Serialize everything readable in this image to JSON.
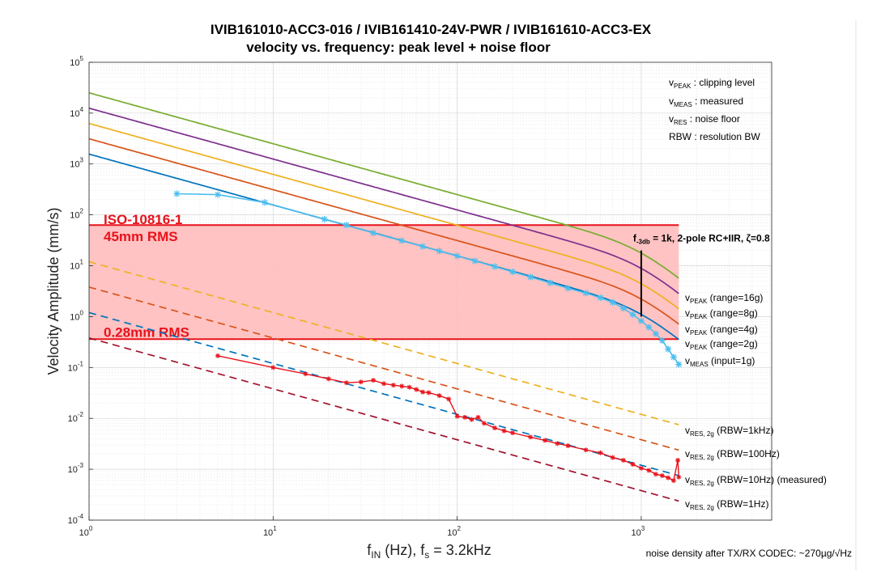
{
  "chart_data": {
    "type": "line",
    "title": "IVIB161010-ACC3-016 / IVIB161410-24V-PWR / IVIB161610-ACC3-EX",
    "subtitle": "velocity vs. frequency: peak level + noise floor",
    "xlabel": {
      "main": "f",
      "sub": "IN",
      "rest": " (Hz), f",
      "sub2": "s",
      "rest2": " = 3.2kHz"
    },
    "ylabel": "Velocity Amplitude (mm/s)",
    "x_scale": "log",
    "y_scale": "log",
    "xlim": [
      1,
      4000
    ],
    "ylim": [
      0.0001,
      100000
    ],
    "x_ticks": [
      {
        "value": 1,
        "base": "10",
        "exp": "0"
      },
      {
        "value": 10,
        "base": "10",
        "exp": "1"
      },
      {
        "value": 100,
        "base": "10",
        "exp": "2"
      },
      {
        "value": 1000,
        "base": "10",
        "exp": "3"
      }
    ],
    "y_ticks": [
      {
        "value": 0.0001,
        "base": "10",
        "exp": "-4"
      },
      {
        "value": 0.001,
        "base": "10",
        "exp": "-3"
      },
      {
        "value": 0.01,
        "base": "10",
        "exp": "-2"
      },
      {
        "value": 0.1,
        "base": "10",
        "exp": "-1"
      },
      {
        "value": 1,
        "base": "10",
        "exp": "0"
      },
      {
        "value": 10,
        "base": "10",
        "exp": "1"
      },
      {
        "value": 100,
        "base": "10",
        "exp": "2"
      },
      {
        "value": 1000,
        "base": "10",
        "exp": "3"
      },
      {
        "value": 10000,
        "base": "10",
        "exp": "4"
      },
      {
        "value": 100000,
        "base": "10",
        "exp": "5"
      }
    ],
    "grid": true,
    "band": {
      "x_range": [
        1,
        1600
      ],
      "y_range": [
        0.36,
        63
      ],
      "fill": "#ffbdbd",
      "edge": "#e8121b",
      "label_top": [
        "ISO-10816-1",
        "45mm RMS"
      ],
      "label_bottom": "0.28mm RMS"
    },
    "peak_series": [
      {
        "label": {
          "pre": "v",
          "sub": "PEAK",
          "post": " (range=16g)"
        },
        "y_at_1hz": 25000,
        "color": "#77ac30"
      },
      {
        "label": {
          "pre": "v",
          "sub": "PEAK",
          "post": " (range=8g)"
        },
        "y_at_1hz": 12500,
        "color": "#7e2f8e"
      },
      {
        "label": {
          "pre": "v",
          "sub": "PEAK",
          "post": " (range=4g)"
        },
        "y_at_1hz": 6250,
        "color": "#edb120"
      },
      {
        "label": {
          "pre": "v",
          "sub": "PEAK",
          "post": " (range=2g)"
        },
        "y_at_1hz": 3125,
        "color": "#d95319"
      },
      {
        "label": {
          "pre": "v",
          "sub": "MEAS",
          "post": " (input=1g)"
        },
        "y_at_1hz": 1562,
        "color": "#0072bd"
      }
    ],
    "peak_rolloff": {
      "type": "2-pole",
      "fc_hz": 1000,
      "f_end_hz": 1600
    },
    "measured_velocity": {
      "color": "#4dbeee",
      "points": [
        [
          3,
          260
        ],
        [
          5,
          250
        ],
        [
          9,
          175
        ],
        [
          19,
          82
        ],
        [
          25,
          63
        ],
        [
          35,
          44
        ],
        [
          50,
          31
        ],
        [
          65,
          24
        ],
        [
          80,
          19.5
        ],
        [
          100,
          15.6
        ],
        [
          125,
          12.4
        ],
        [
          160,
          9.6
        ],
        [
          200,
          7.6
        ],
        [
          250,
          6.0
        ],
        [
          320,
          4.6
        ],
        [
          400,
          3.6
        ],
        [
          500,
          2.9
        ],
        [
          600,
          2.35
        ],
        [
          700,
          1.9
        ],
        [
          800,
          1.45
        ],
        [
          900,
          1.1
        ],
        [
          1000,
          0.82
        ],
        [
          1100,
          0.62
        ],
        [
          1200,
          0.46
        ],
        [
          1300,
          0.34
        ],
        [
          1400,
          0.23
        ],
        [
          1500,
          0.16
        ],
        [
          1600,
          0.115
        ]
      ]
    },
    "noise_series": [
      {
        "label": {
          "pre": "v",
          "sub": "RES, 2g",
          "post": " (RBW=1kHz)"
        },
        "y_at_1hz": 12,
        "color": "#edb120"
      },
      {
        "label": {
          "pre": "v",
          "sub": "RES, 2g",
          "post": " (RBW=100Hz)"
        },
        "y_at_1hz": 3.8,
        "color": "#d95319"
      },
      {
        "label": {
          "pre": "v",
          "sub": "RES, 2g",
          "post": " (RBW=10Hz) (measured)"
        },
        "y_at_1hz": 1.2,
        "color": "#0072bd"
      },
      {
        "label": {
          "pre": "v",
          "sub": "RES, 2g",
          "post": " (RBW=1Hz)"
        },
        "y_at_1hz": 0.38,
        "color": "#a2142f"
      }
    ],
    "noise_x_range": [
      1,
      1600
    ],
    "measured_noise": {
      "color": "#e8121b",
      "points": [
        [
          5,
          0.17
        ],
        [
          10,
          0.1
        ],
        [
          15,
          0.075
        ],
        [
          20,
          0.06
        ],
        [
          25,
          0.05
        ],
        [
          30,
          0.052
        ],
        [
          35,
          0.056
        ],
        [
          40,
          0.048
        ],
        [
          45,
          0.045
        ],
        [
          50,
          0.043
        ],
        [
          55,
          0.041
        ],
        [
          60,
          0.037
        ],
        [
          65,
          0.033
        ],
        [
          70,
          0.032
        ],
        [
          80,
          0.028
        ],
        [
          90,
          0.024
        ],
        [
          100,
          0.011
        ],
        [
          110,
          0.0105
        ],
        [
          120,
          0.0095
        ],
        [
          130,
          0.0105
        ],
        [
          140,
          0.008
        ],
        [
          160,
          0.0065
        ],
        [
          180,
          0.0057
        ],
        [
          200,
          0.0052
        ],
        [
          250,
          0.0043
        ],
        [
          300,
          0.0037
        ],
        [
          350,
          0.0032
        ],
        [
          400,
          0.0029
        ],
        [
          500,
          0.0024
        ],
        [
          600,
          0.0021
        ],
        [
          700,
          0.0017
        ],
        [
          800,
          0.0015
        ],
        [
          900,
          0.00125
        ],
        [
          1000,
          0.00105
        ],
        [
          1100,
          0.00095
        ],
        [
          1200,
          0.0008
        ],
        [
          1300,
          0.00075
        ],
        [
          1400,
          0.00068
        ],
        [
          1500,
          0.0006
        ],
        [
          1580,
          0.0015
        ],
        [
          1600,
          0.0007
        ]
      ]
    },
    "legend_notes": [
      {
        "pre": "v",
        "sub": "PEAK",
        "post": " : clipping level"
      },
      {
        "pre": "v",
        "sub": "MEAS",
        "post": " : measured"
      },
      {
        "pre": "v",
        "sub": "RES",
        "post": "  : noise floor"
      },
      {
        "pre": "RBW",
        "sub": "",
        "post": " : resolution BW"
      }
    ],
    "annotation": {
      "pre": "f",
      "sub": "-3db",
      "post": " = 1k, 2-pole RC+IIR, ζ=0.8",
      "x": 1000,
      "y_range": [
        1.0,
        20
      ]
    },
    "footnote": "noise density after TX/RX CODEC: ~270µg/√Hz"
  }
}
